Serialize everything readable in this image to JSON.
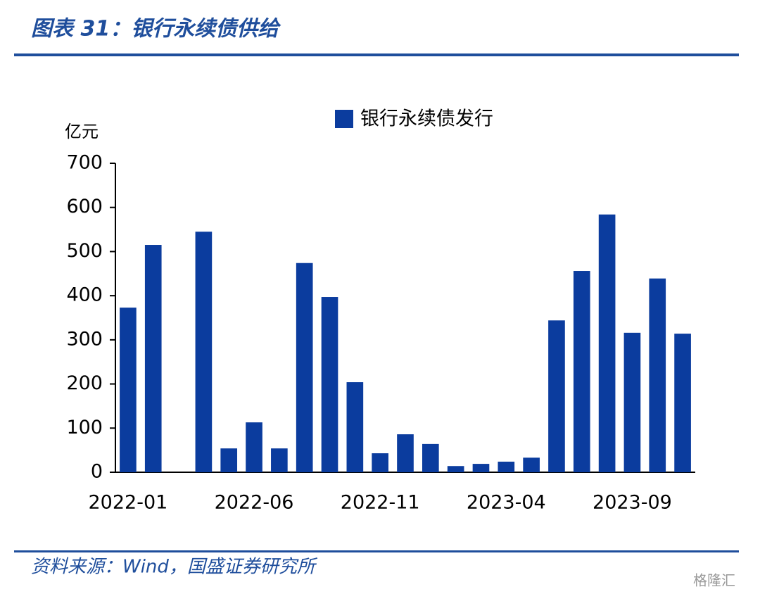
{
  "header": {
    "title": "图表 31：银行永续债供给"
  },
  "chart_data": {
    "type": "bar",
    "y_label": "亿元",
    "categories": [
      "2022-01",
      null,
      null,
      null,
      null,
      "2022-06",
      null,
      null,
      null,
      null,
      "2022-11",
      null,
      null,
      null,
      null,
      "2023-04",
      null,
      null,
      null,
      null,
      "2023-09",
      null,
      null
    ],
    "series": [
      {
        "name": "银行永续债发行",
        "color": "#0b3c9e",
        "values": [
          373,
          515,
          0,
          545,
          54,
          113,
          54,
          474,
          397,
          204,
          43,
          86,
          64,
          14,
          19,
          24,
          33,
          344,
          456,
          584,
          316,
          439,
          314
        ]
      }
    ],
    "ylim": [
      0,
      700
    ],
    "yticks": [
      0,
      100,
      200,
      300,
      400,
      500,
      600,
      700
    ]
  },
  "footer": {
    "source": "资料来源：Wind，国盛证券研究所",
    "watermark": "格隆汇"
  }
}
